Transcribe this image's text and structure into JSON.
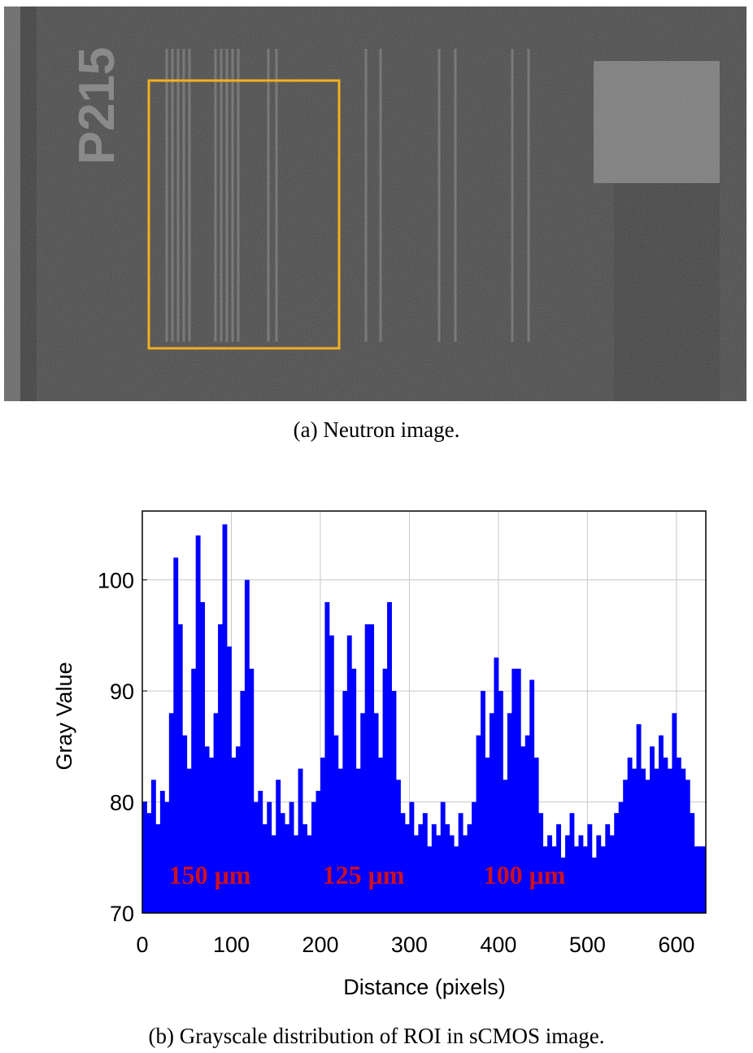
{
  "figure_a": {
    "image_text": "P215",
    "caption": "(a)  Neutron image."
  },
  "figure_b": {
    "caption": "(b)  Grayscale distribution of ROI in sCMOS image."
  },
  "chart_data": {
    "type": "bar",
    "x_label": "Distance (pixels)",
    "y_label": "Gray Value",
    "annotations": [
      "150 μm",
      "125 μm",
      "100 μm"
    ],
    "color": "#0000ff",
    "grid": true,
    "xlim": [
      0,
      633
    ],
    "ylim": [
      70,
      106.2
    ],
    "xticks": [
      0,
      100,
      200,
      300,
      400,
      500,
      600
    ],
    "yticks": [
      70,
      80,
      90,
      100
    ],
    "x": [
      0,
      5,
      10,
      15,
      20,
      25,
      30,
      35,
      40,
      45,
      50,
      55,
      60,
      65,
      70,
      75,
      80,
      85,
      90,
      95,
      100,
      105,
      110,
      115,
      120,
      125,
      130,
      135,
      140,
      145,
      150,
      155,
      160,
      165,
      170,
      175,
      180,
      185,
      190,
      195,
      200,
      205,
      210,
      215,
      220,
      225,
      230,
      235,
      240,
      245,
      250,
      255,
      260,
      265,
      270,
      275,
      280,
      285,
      290,
      295,
      300,
      305,
      310,
      315,
      320,
      325,
      330,
      335,
      340,
      345,
      350,
      355,
      360,
      365,
      370,
      375,
      380,
      385,
      390,
      395,
      400,
      405,
      410,
      415,
      420,
      425,
      430,
      435,
      440,
      445,
      450,
      455,
      460,
      465,
      470,
      475,
      480,
      485,
      490,
      495,
      500,
      505,
      510,
      515,
      520,
      525,
      530,
      535,
      540,
      545,
      550,
      555,
      560,
      565,
      570,
      575,
      580,
      585,
      590,
      595,
      600,
      605,
      610,
      615,
      620
    ],
    "values": [
      80,
      79,
      82,
      78,
      81,
      80,
      88,
      102,
      96,
      86,
      83,
      92,
      104,
      98,
      85,
      84,
      88,
      96,
      105,
      94,
      84,
      85,
      90,
      100,
      92,
      80,
      81,
      78,
      80,
      77,
      82,
      79,
      78,
      80,
      77,
      83,
      78,
      77,
      80,
      81,
      84,
      98,
      95,
      86,
      83,
      90,
      95,
      92,
      83,
      88,
      96,
      96,
      88,
      84,
      92,
      98,
      90,
      82,
      79,
      78,
      80,
      77,
      78,
      79,
      76,
      78,
      77,
      80,
      78,
      77,
      76,
      79,
      77,
      78,
      80,
      86,
      90,
      84,
      88,
      93,
      90,
      82,
      88,
      92,
      92,
      85,
      86,
      91,
      84,
      79,
      76,
      77,
      76,
      78,
      75,
      77,
      79,
      76,
      77,
      76,
      78,
      75,
      77,
      76,
      78,
      77,
      79,
      80,
      82,
      84,
      83,
      87,
      83,
      82,
      85,
      83,
      86,
      84,
      83,
      88,
      84,
      83,
      82,
      79,
      76
    ]
  }
}
